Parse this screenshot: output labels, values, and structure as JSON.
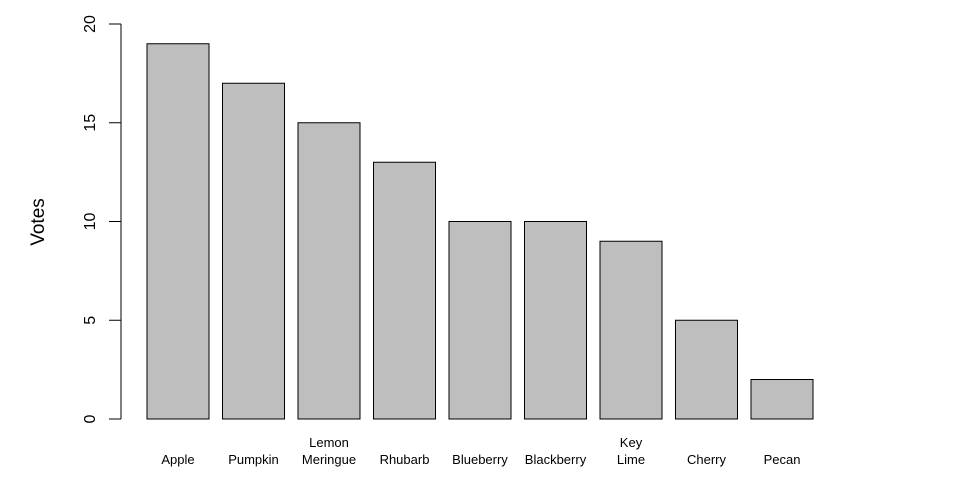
{
  "chart_data": {
    "type": "bar",
    "categories": [
      "Apple",
      "Pumpkin",
      "Lemon\nMeringue",
      "Rhubarb",
      "Blueberry",
      "Blackberry",
      "Key\nLime",
      "Cherry",
      "Pecan"
    ],
    "values": [
      19,
      17,
      15,
      13,
      10,
      10,
      9,
      5,
      2
    ],
    "title": "",
    "xlabel": "",
    "ylabel": "Votes",
    "ylim": [
      0,
      20
    ],
    "yticks": [
      0,
      5,
      10,
      15,
      20
    ],
    "grid": false,
    "bar_color": "#bebebe",
    "bar_border_color": "#000000"
  }
}
